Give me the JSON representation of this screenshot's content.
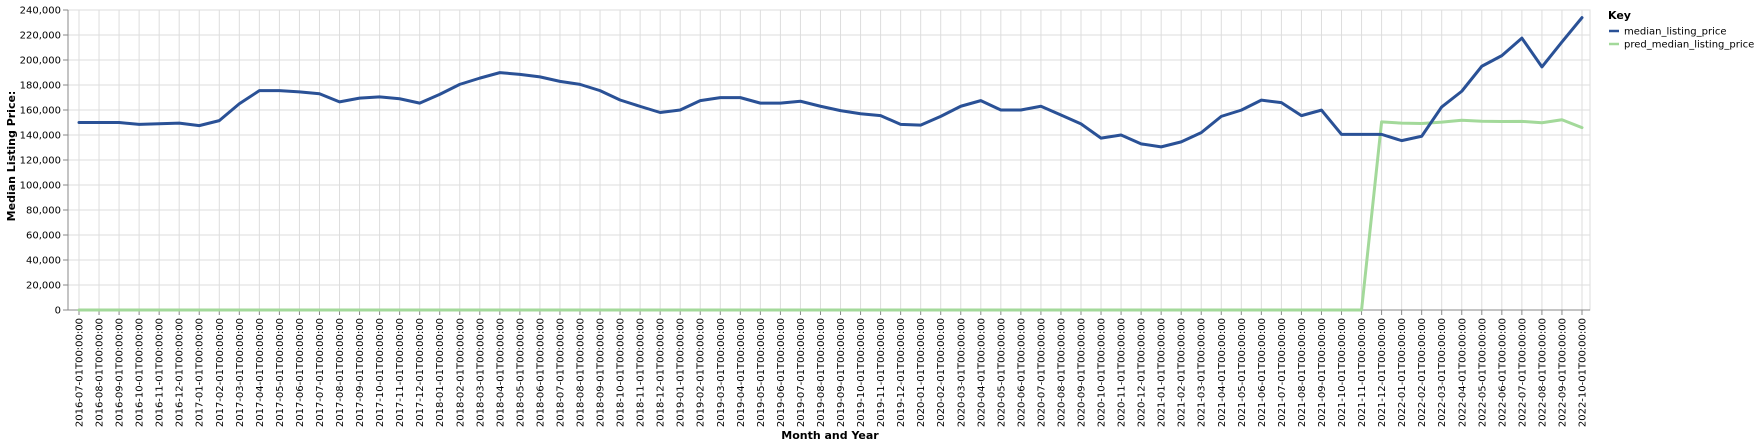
{
  "chart_data": {
    "type": "line",
    "xlabel": "Month and Year",
    "ylabel": "Median Listing Price:",
    "ylim": [
      0,
      240000
    ],
    "y_ticks": [
      0,
      20000,
      40000,
      60000,
      80000,
      100000,
      120000,
      140000,
      160000,
      180000,
      200000,
      220000,
      240000
    ],
    "y_tick_labels": [
      "0",
      "20,000",
      "40,000",
      "60,000",
      "80,000",
      "100,000",
      "120,000",
      "140,000",
      "160,000",
      "180,000",
      "200,000",
      "220,000",
      "240,000"
    ],
    "grid": true,
    "legend": {
      "title": "Key",
      "placement": "right"
    },
    "x": [
      "2016-07-01T00:00:00",
      "2016-08-01T00:00:00",
      "2016-09-01T00:00:00",
      "2016-10-01T00:00:00",
      "2016-11-01T00:00:00",
      "2016-12-01T00:00:00",
      "2017-01-01T00:00:00",
      "2017-02-01T00:00:00",
      "2017-03-01T00:00:00",
      "2017-04-01T00:00:00",
      "2017-05-01T00:00:00",
      "2017-06-01T00:00:00",
      "2017-07-01T00:00:00",
      "2017-08-01T00:00:00",
      "2017-09-01T00:00:00",
      "2017-10-01T00:00:00",
      "2017-11-01T00:00:00",
      "2017-12-01T00:00:00",
      "2018-01-01T00:00:00",
      "2018-02-01T00:00:00",
      "2018-03-01T00:00:00",
      "2018-04-01T00:00:00",
      "2018-05-01T00:00:00",
      "2018-06-01T00:00:00",
      "2018-07-01T00:00:00",
      "2018-08-01T00:00:00",
      "2018-09-01T00:00:00",
      "2018-10-01T00:00:00",
      "2018-11-01T00:00:00",
      "2018-12-01T00:00:00",
      "2019-01-01T00:00:00",
      "2019-02-01T00:00:00",
      "2019-03-01T00:00:00",
      "2019-04-01T00:00:00",
      "2019-05-01T00:00:00",
      "2019-06-01T00:00:00",
      "2019-07-01T00:00:00",
      "2019-08-01T00:00:00",
      "2019-09-01T00:00:00",
      "2019-10-01T00:00:00",
      "2019-11-01T00:00:00",
      "2019-12-01T00:00:00",
      "2020-01-01T00:00:00",
      "2020-02-01T00:00:00",
      "2020-03-01T00:00:00",
      "2020-04-01T00:00:00",
      "2020-05-01T00:00:00",
      "2020-06-01T00:00:00",
      "2020-07-01T00:00:00",
      "2020-08-01T00:00:00",
      "2020-09-01T00:00:00",
      "2020-10-01T00:00:00",
      "2020-11-01T00:00:00",
      "2020-12-01T00:00:00",
      "2021-01-01T00:00:00",
      "2021-02-01T00:00:00",
      "2021-03-01T00:00:00",
      "2021-04-01T00:00:00",
      "2021-05-01T00:00:00",
      "2021-06-01T00:00:00",
      "2021-07-01T00:00:00",
      "2021-08-01T00:00:00",
      "2021-09-01T00:00:00",
      "2021-10-01T00:00:00",
      "2021-11-01T00:00:00",
      "2021-12-01T00:00:00",
      "2022-01-01T00:00:00",
      "2022-02-01T00:00:00",
      "2022-03-01T00:00:00",
      "2022-04-01T00:00:00",
      "2022-05-01T00:00:00",
      "2022-06-01T00:00:00",
      "2022-07-01T00:00:00",
      "2022-08-01T00:00:00",
      "2022-09-01T00:00:00",
      "2022-10-01T00:00:00"
    ],
    "series": [
      {
        "name": "median_listing_price",
        "color": "#2a5196",
        "values": [
          150000,
          150000,
          150000,
          148500,
          149000,
          149500,
          147500,
          151500,
          165000,
          175500,
          175500,
          174500,
          173000,
          166500,
          169500,
          170500,
          169000,
          165500,
          172500,
          180500,
          185500,
          189900,
          188500,
          186500,
          182900,
          180500,
          175500,
          168000,
          162900,
          158000,
          160000,
          167500,
          169900,
          169900,
          165500,
          165500,
          167000,
          163000,
          159500,
          157000,
          155500,
          148500,
          147900,
          154900,
          163000,
          167500,
          160000,
          160000,
          163000,
          156000,
          148900,
          137500,
          140000,
          132900,
          130500,
          134500,
          141900,
          154900,
          159900,
          167900,
          165900,
          155500,
          159900,
          140500,
          140500,
          140500,
          135500,
          139000,
          162500,
          175000,
          195000,
          203500,
          217500,
          194500,
          214500,
          233900
        ]
      },
      {
        "name": "pred_median_listing_price",
        "color": "#a3d99a",
        "values": [
          0,
          0,
          0,
          0,
          0,
          0,
          0,
          0,
          0,
          0,
          0,
          0,
          0,
          0,
          0,
          0,
          0,
          0,
          0,
          0,
          0,
          0,
          0,
          0,
          0,
          0,
          0,
          0,
          0,
          0,
          0,
          0,
          0,
          0,
          0,
          0,
          0,
          0,
          0,
          0,
          0,
          0,
          0,
          0,
          0,
          0,
          0,
          0,
          0,
          0,
          0,
          0,
          0,
          0,
          0,
          0,
          0,
          0,
          0,
          0,
          0,
          0,
          0,
          0,
          0,
          150500,
          149500,
          149200,
          150300,
          151800,
          151000,
          150800,
          150900,
          149800,
          152200,
          145900
        ]
      }
    ]
  }
}
